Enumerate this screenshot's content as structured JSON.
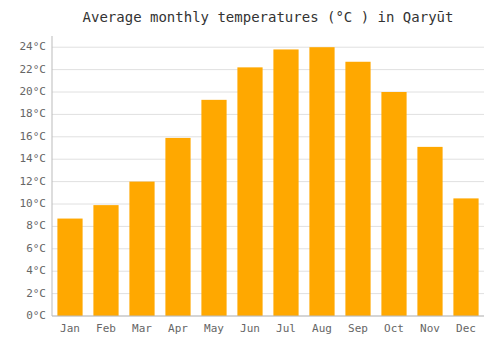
{
  "chart_data": {
    "type": "bar",
    "title": "Average monthly temperatures (°C ) in Qaryūt",
    "categories": [
      "Jan",
      "Feb",
      "Mar",
      "Apr",
      "May",
      "Jun",
      "Jul",
      "Aug",
      "Sep",
      "Oct",
      "Nov",
      "Dec"
    ],
    "values": [
      8.7,
      9.9,
      12.0,
      15.9,
      19.3,
      22.2,
      23.8,
      24.0,
      22.7,
      20.0,
      15.1,
      10.5
    ],
    "color": "#FFA800",
    "ylim": [
      0,
      25
    ],
    "yticks": [
      {
        "value": 0,
        "label": "0°C"
      },
      {
        "value": 2,
        "label": "2°C"
      },
      {
        "value": 4,
        "label": "4°C"
      },
      {
        "value": 6,
        "label": "6°C"
      },
      {
        "value": 8,
        "label": "8°C"
      },
      {
        "value": 10,
        "label": "10°C"
      },
      {
        "value": 12,
        "label": "12°C"
      },
      {
        "value": 14,
        "label": "14°C"
      },
      {
        "value": 16,
        "label": "16°C"
      },
      {
        "value": 18,
        "label": "18°C"
      },
      {
        "value": 20,
        "label": "20°C"
      },
      {
        "value": 22,
        "label": "22°C"
      },
      {
        "value": 24,
        "label": "24°C"
      }
    ],
    "grid": true
  }
}
